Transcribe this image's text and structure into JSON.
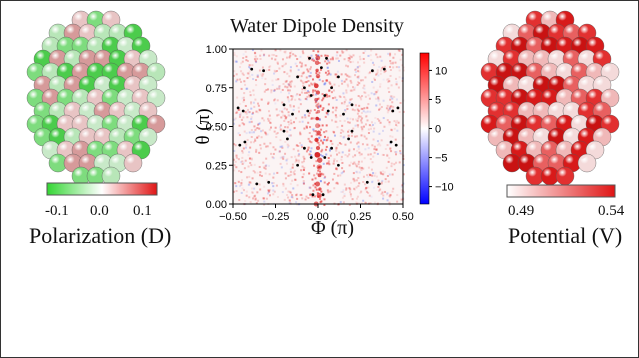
{
  "chart_data": [
    {
      "type": "heatmap",
      "title": "Water Dipole Density",
      "xlabel": "Φ (π)",
      "ylabel": "θ (π)",
      "xlim": [
        -0.5,
        0.5
      ],
      "ylim": [
        0.0,
        1.0
      ],
      "x_ticks": [
        "−0.50",
        "−0.25",
        "0.00",
        "0.25",
        "0.50"
      ],
      "y_ticks": [
        "0.00",
        "0.25",
        "0.50",
        "0.75",
        "1.00"
      ],
      "colorbar": {
        "range": [
          -13,
          13
        ],
        "ticks": [
          "10",
          "5",
          "0",
          "−5",
          "−10"
        ],
        "colors": [
          "#0000ff",
          "#ffffff",
          "#ff0000"
        ]
      },
      "markers": {
        "color": "#000000",
        "points": [
          [
            -0.39,
            0.87
          ],
          [
            -0.32,
            0.86
          ],
          [
            0.32,
            0.86
          ],
          [
            0.39,
            0.87
          ],
          [
            -0.05,
            0.94
          ],
          [
            0.05,
            0.94
          ],
          [
            0.02,
            0.88
          ],
          [
            -0.12,
            0.82
          ],
          [
            0.12,
            0.82
          ],
          [
            -0.08,
            0.75
          ],
          [
            0.08,
            0.75
          ],
          [
            -0.04,
            0.7
          ],
          [
            0.04,
            0.7
          ],
          [
            -0.47,
            0.62
          ],
          [
            -0.44,
            0.6
          ],
          [
            0.44,
            0.6
          ],
          [
            0.47,
            0.62
          ],
          [
            -0.2,
            0.64
          ],
          [
            0.2,
            0.64
          ],
          [
            -0.15,
            0.58
          ],
          [
            0.15,
            0.58
          ],
          [
            -0.06,
            0.6
          ],
          [
            0.06,
            0.6
          ],
          [
            -0.2,
            0.47
          ],
          [
            0.2,
            0.47
          ],
          [
            -0.18,
            0.42
          ],
          [
            0.18,
            0.42
          ],
          [
            -0.43,
            0.4
          ],
          [
            -0.46,
            0.38
          ],
          [
            0.43,
            0.4
          ],
          [
            0.46,
            0.38
          ],
          [
            -0.08,
            0.36
          ],
          [
            0.08,
            0.36
          ],
          [
            -0.04,
            0.3
          ],
          [
            0.04,
            0.3
          ],
          [
            -0.12,
            0.25
          ],
          [
            0.12,
            0.25
          ],
          [
            -0.36,
            0.13
          ],
          [
            -0.29,
            0.14
          ],
          [
            0.29,
            0.14
          ],
          [
            0.36,
            0.13
          ],
          [
            -0.03,
            0.06
          ],
          [
            0.03,
            0.06
          ]
        ]
      }
    },
    {
      "type": "colorbar",
      "caption": "Polarization (D)",
      "ticks": [
        "-0.1",
        "0.0",
        "0.1"
      ],
      "colors": [
        "#33d633",
        "#ffffff",
        "#e01515"
      ]
    },
    {
      "type": "colorbar",
      "caption": "Potential (V)",
      "ticks": [
        "0.49",
        "0.54"
      ],
      "colors": [
        "#ffffff",
        "#e01515"
      ]
    }
  ],
  "nanoparticles": [
    {
      "name": "polarization-nanoparticle",
      "palette": [
        "#4ccc4c",
        "#7edc7e",
        "#c8e9c8",
        "#e8c4c4",
        "#d69a9a",
        "#b8e6b8"
      ]
    },
    {
      "name": "potential-nanoparticle",
      "palette": [
        "#d81a1a",
        "#e23030",
        "#c91212",
        "#f0b8b8",
        "#e86060",
        "#f4dada"
      ]
    }
  ]
}
